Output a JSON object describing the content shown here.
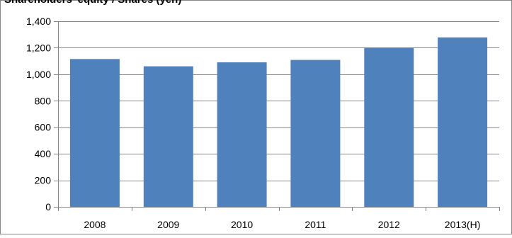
{
  "chart_data": {
    "type": "bar",
    "title": "Shareholders' equity / Shares (yen)",
    "categories": [
      "2008",
      "2009",
      "2010",
      "2011",
      "2012",
      "2013(H)"
    ],
    "values": [
      1115,
      1060,
      1090,
      1108,
      1200,
      1278
    ],
    "ylim": [
      0,
      1400
    ],
    "yticks": [
      "0",
      "200",
      "400",
      "600",
      "800",
      "1,000",
      "1,200",
      "1,400"
    ],
    "ytick_values": [
      0,
      200,
      400,
      600,
      800,
      1000,
      1200,
      1400
    ],
    "grid": true,
    "bar_color": "#4f81bd",
    "grid_color": "#868686"
  }
}
